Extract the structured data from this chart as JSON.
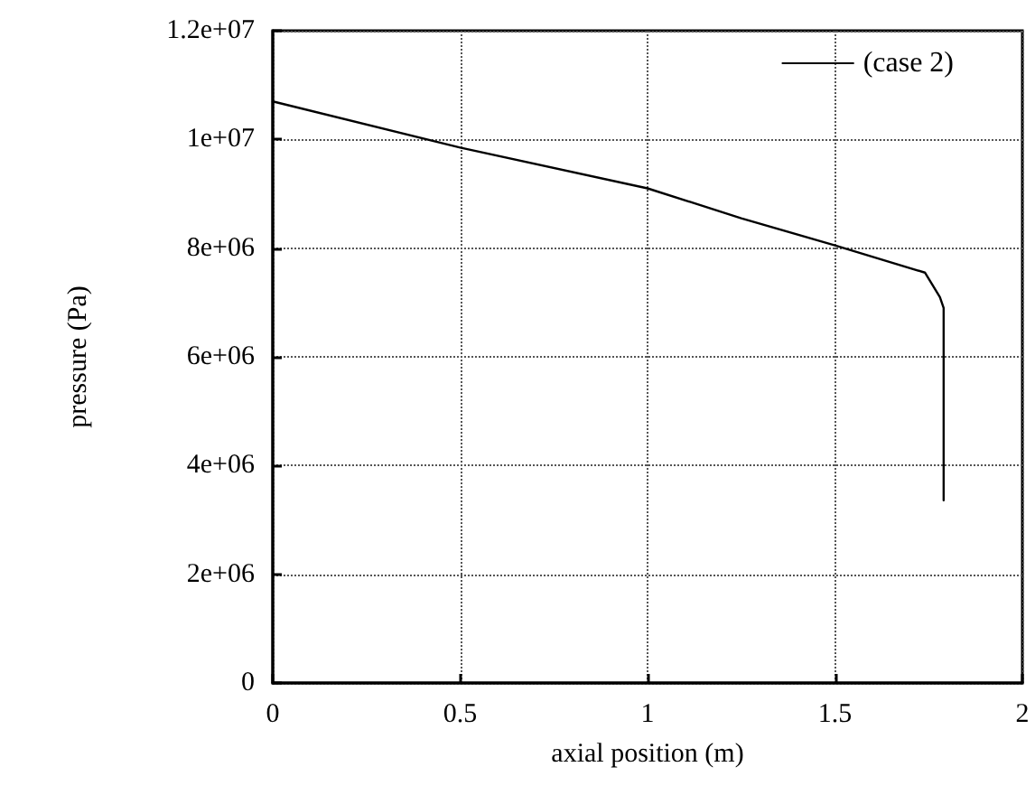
{
  "chart_data": {
    "type": "line",
    "xlabel": "axial position (m)",
    "ylabel": "pressure (Pa)",
    "xlim": [
      0,
      2
    ],
    "xticks": [
      0,
      0.5,
      1,
      1.5,
      2
    ],
    "ylim": [
      0,
      12000000
    ],
    "yticks": [
      {
        "value": 0,
        "label": "0"
      },
      {
        "value": 2000000,
        "label": "2e+06"
      },
      {
        "value": 4000000,
        "label": "4e+06"
      },
      {
        "value": 6000000,
        "label": "6e+06"
      },
      {
        "value": 8000000,
        "label": "8e+06"
      },
      {
        "value": 10000000,
        "label": "1e+07"
      },
      {
        "value": 12000000,
        "label": "1.2e+07"
      }
    ],
    "grid": true,
    "legend": "top right",
    "line_style": "solid",
    "marker": "none",
    "series": [
      {
        "name": "(case 2)",
        "color": "#000000",
        "x": [
          0,
          0.5,
          1,
          1.25,
          1.5,
          1.74,
          1.78,
          1.79,
          1.79
        ],
        "values": [
          10700000,
          9850000,
          9100000,
          8550000,
          8050000,
          7550000,
          7100000,
          6900000,
          3360000
        ]
      }
    ]
  }
}
